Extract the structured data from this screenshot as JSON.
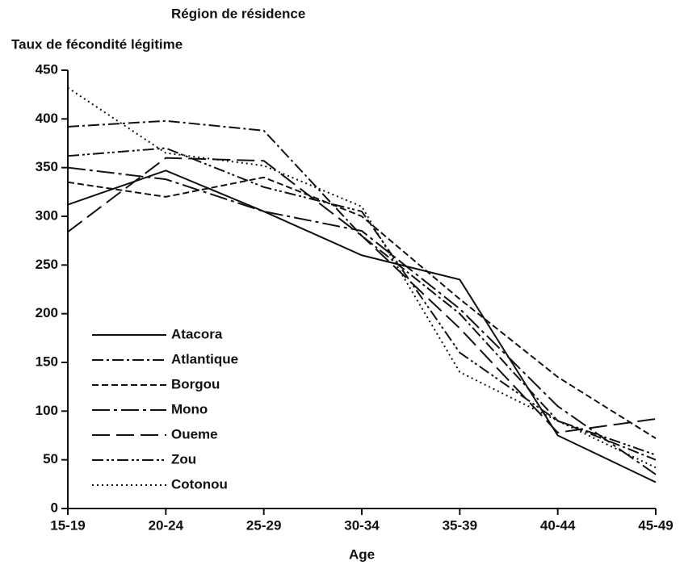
{
  "chart_data": {
    "type": "line",
    "title": "Région de résidence",
    "y_label": "Taux de fécondité légitime",
    "x_label": "Age",
    "categories": [
      "15-19",
      "20-24",
      "25-29",
      "30-34",
      "35-39",
      "40-44",
      "45-49"
    ],
    "ylim": [
      0,
      450
    ],
    "yticks": [
      0,
      50,
      100,
      150,
      200,
      250,
      300,
      350,
      400,
      450
    ],
    "grid": false,
    "legend": "lower left",
    "series": [
      {
        "name": "Atacora",
        "color": "#111111",
        "dash": "none",
        "values": [
          312,
          347,
          305,
          260,
          235,
          75,
          27
        ]
      },
      {
        "name": "Atlantique",
        "color": "#111111",
        "dash": "14 4 3 4",
        "values": [
          392,
          398,
          388,
          280,
          200,
          90,
          50
        ]
      },
      {
        "name": "Borgou",
        "color": "#111111",
        "dash": "8 4",
        "values": [
          335,
          320,
          340,
          300,
          215,
          135,
          72
        ]
      },
      {
        "name": "Mono",
        "color": "#111111",
        "dash": "22 5 4 5",
        "values": [
          350,
          338,
          305,
          285,
          205,
          105,
          35
        ]
      },
      {
        "name": "Oueme",
        "color": "#111111",
        "dash": "22 8",
        "values": [
          284,
          360,
          357,
          280,
          185,
          78,
          92
        ]
      },
      {
        "name": "Zou",
        "color": "#111111",
        "dash": "14 4 3 3 3 4",
        "values": [
          362,
          370,
          330,
          305,
          160,
          90,
          55
        ]
      },
      {
        "name": "Cotonou",
        "color": "#111111",
        "dash": "2 4",
        "values": [
          432,
          365,
          352,
          310,
          140,
          90,
          42
        ]
      }
    ]
  }
}
